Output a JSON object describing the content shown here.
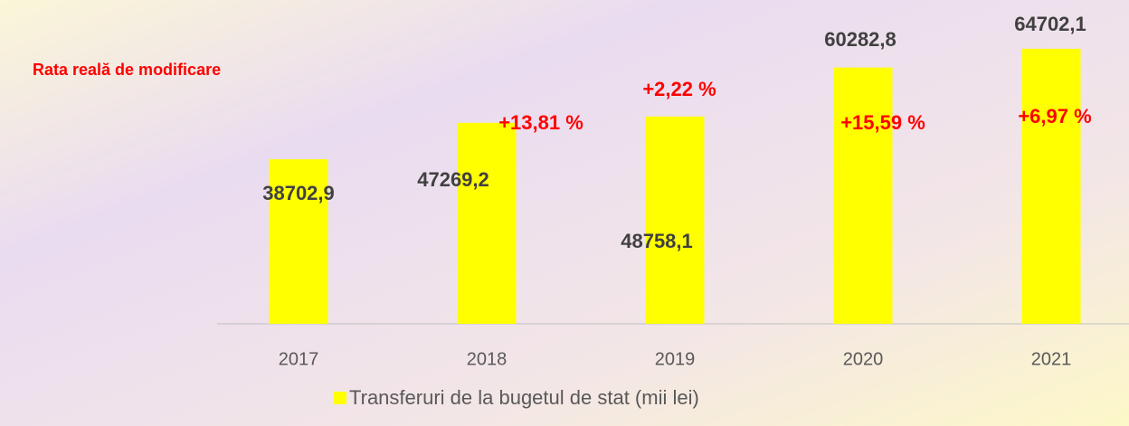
{
  "chart_data": {
    "type": "bar",
    "annotation": "Rata reală de modificare",
    "categories": [
      "2017",
      "2018",
      "2019",
      "2020",
      "2021"
    ],
    "series": [
      {
        "name": "Transferuri de la bugetul de stat (mii lei)",
        "color": "#ffff00",
        "values": [
          38702.9,
          47269.2,
          48758.1,
          60282.8,
          64702.1
        ],
        "value_labels": [
          "38702,9",
          "47269,2",
          "48758,1",
          "60282,8",
          "64702,1"
        ]
      }
    ],
    "rate_labels": [
      null,
      "+13,81 %",
      "+2,22 %",
      "+15,59 %",
      "+6,97 %"
    ],
    "ylim": [
      0,
      70000
    ],
    "grid": false
  }
}
